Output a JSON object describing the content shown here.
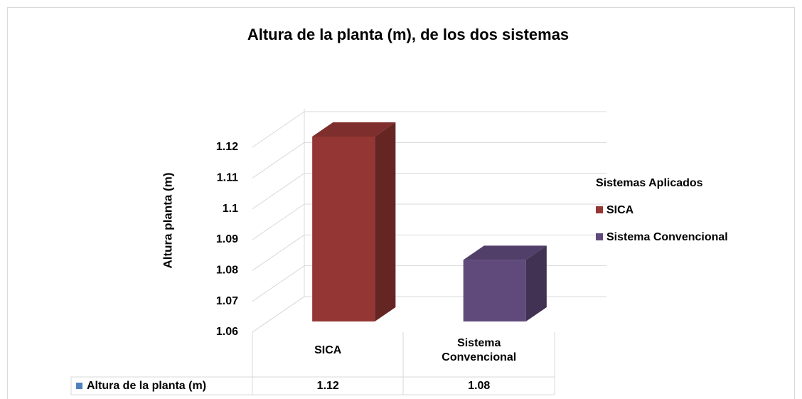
{
  "chart_data": {
    "type": "bar3d",
    "title": "Altura de la planta (m), de los dos sistemas",
    "y_label": "Altura planta (m)",
    "legend_title": "Sistemas Aplicados",
    "categories": [
      "SICA",
      "Sistema Convencional"
    ],
    "values": [
      1.12,
      1.08
    ],
    "colors": [
      "#943634",
      "#604a7b"
    ],
    "ylim": [
      1.06,
      1.12
    ],
    "yticks": [
      1.06,
      1.07,
      1.08,
      1.09,
      1.1,
      1.11,
      1.12
    ],
    "grid": true,
    "table_row_label": "Altura de la planta (m)",
    "table_marker_color": "#4f81bd"
  }
}
